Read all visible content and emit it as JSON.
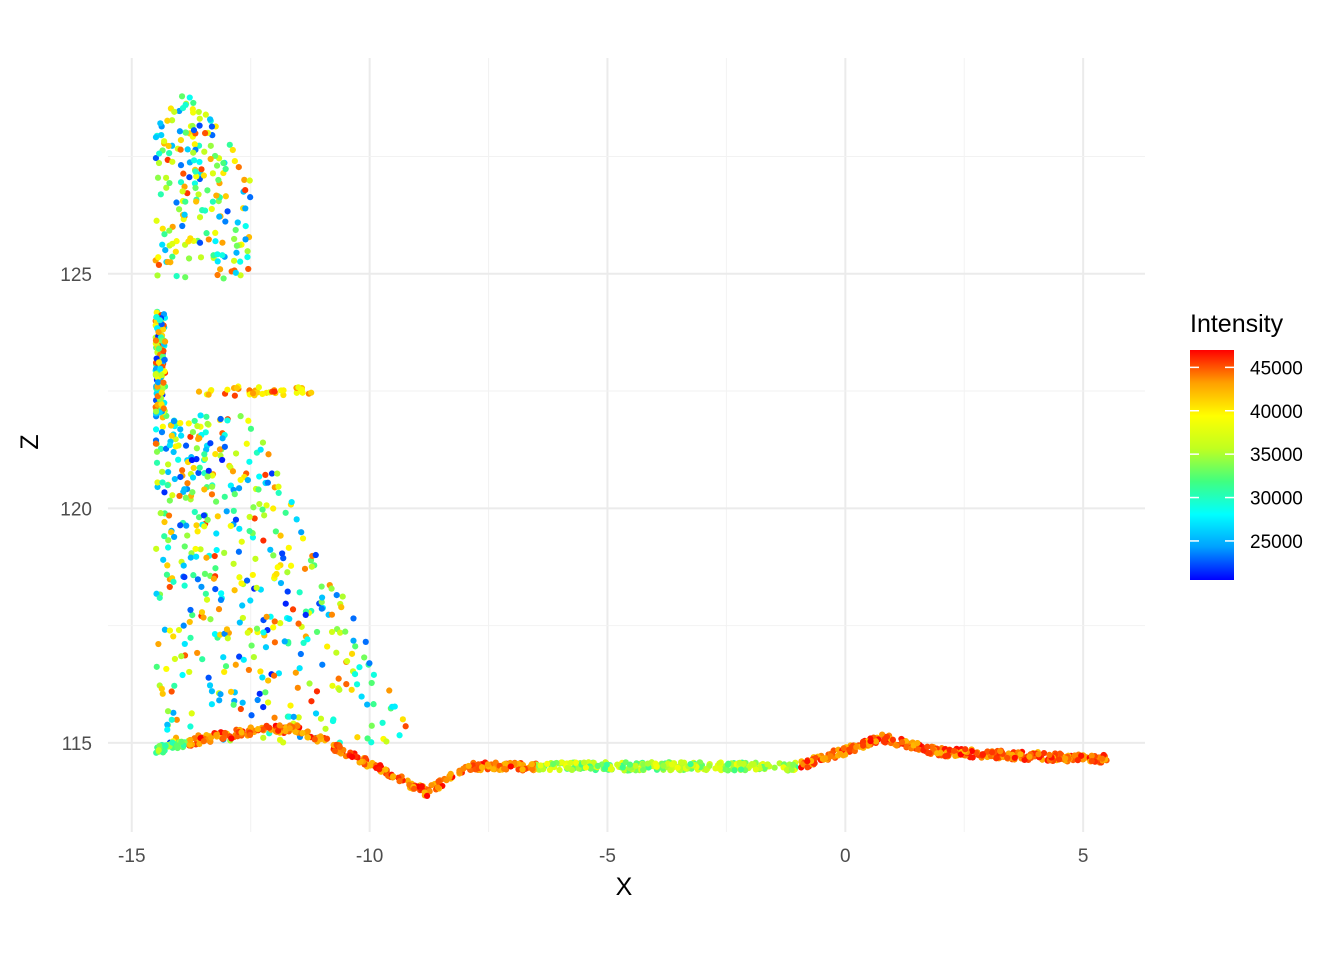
{
  "chart_data": {
    "type": "scatter",
    "xlabel": "X",
    "ylabel": "Z",
    "xlim": [
      -15.5,
      6.3
    ],
    "ylim": [
      113.1,
      129.6
    ],
    "x_ticks": [
      -15,
      -10,
      -5,
      0,
      5
    ],
    "x_tick_labels": [
      "-15",
      "-10",
      "-5",
      "0",
      "5"
    ],
    "y_ticks": [
      115,
      120,
      125
    ],
    "y_tick_labels": [
      "115",
      "120",
      "125"
    ],
    "grid": true,
    "legend": {
      "title": "Intensity",
      "placement": "right",
      "range": [
        20500,
        47000
      ],
      "ticks": [
        25000,
        30000,
        35000,
        40000,
        45000
      ],
      "tick_labels": [
        "25000",
        "30000",
        "35000",
        "40000",
        "45000"
      ],
      "colors": [
        "#0000ff",
        "#00a0ff",
        "#00ffff",
        "#40ff80",
        "#c0ff20",
        "#ffff00",
        "#ffa000",
        "#ff0000"
      ]
    },
    "groups": [
      {
        "region": "upper wall",
        "x_range": [
          -14.5,
          -12.5
        ],
        "z_range": [
          124.9,
          128.8
        ],
        "intensity_range": [
          22000,
          46000
        ]
      },
      {
        "region": "middle wall",
        "x_range": [
          -14.5,
          -9.2
        ],
        "z_range": [
          115.0,
          124.2
        ],
        "intensity_range": [
          21000,
          46000
        ]
      },
      {
        "region": "ground",
        "x_range": [
          -14.5,
          5.5
        ],
        "z_range": [
          114.0,
          115.3
        ],
        "intensity_range": [
          29000,
          47000
        ]
      }
    ]
  }
}
